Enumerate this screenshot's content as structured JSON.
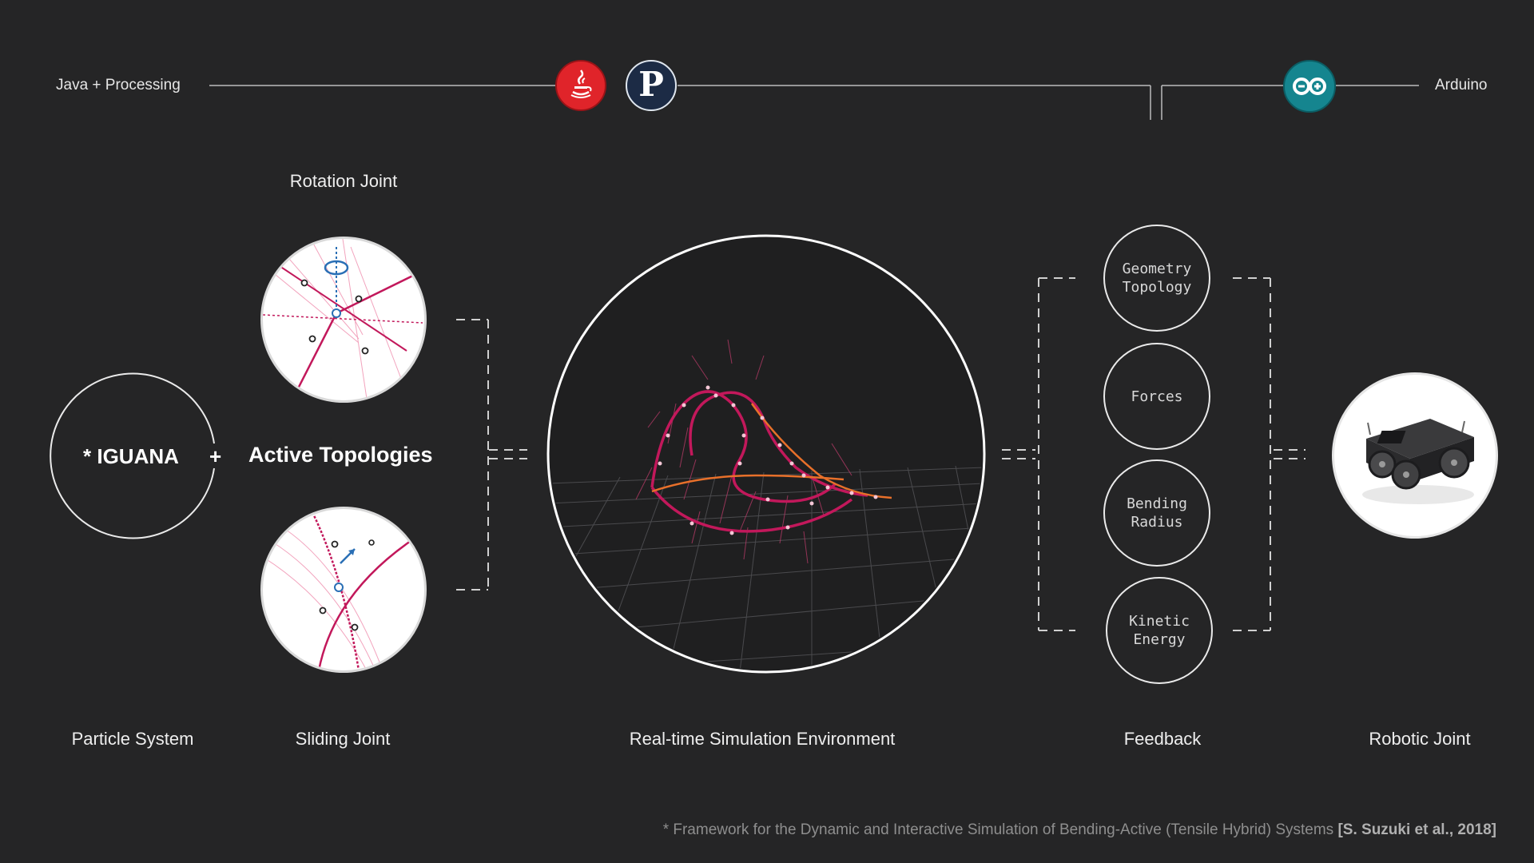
{
  "header": {
    "left_label": "Java + Processing",
    "right_label": "Arduino",
    "java_logo": "java-logo",
    "processing_logo_letter": "P",
    "arduino_logo": "arduino-logo"
  },
  "iguana": {
    "title": "* IGUANA",
    "plus": "+",
    "active_topologies": "Active Topologies"
  },
  "joints": {
    "rotation_label": "Rotation Joint",
    "sliding_label": "Sliding Joint"
  },
  "feedback": {
    "items": [
      {
        "line1": "Geometry",
        "line2": "Topology"
      },
      {
        "line1": "Forces",
        "line2": ""
      },
      {
        "line1": "Bending",
        "line2": "Radius"
      },
      {
        "line1": "Kinetic",
        "line2": "Energy"
      }
    ]
  },
  "bottom_labels": {
    "particle": "Particle System",
    "sliding": "Sliding Joint",
    "simulation": "Real-time Simulation Environment",
    "feedback": "Feedback",
    "robotic": "Robotic Joint"
  },
  "footnote": {
    "text": "* Framework for the Dynamic and Interactive Simulation of Bending-Active (Tensile Hybrid) Systems ",
    "citation": "[S. Suzuki et al., 2018]"
  },
  "colors": {
    "magenta": "#c2185b",
    "orange": "#e8702a",
    "java_red": "#e0242a",
    "processing_navy": "#1c2b45",
    "arduino_teal": "#15858f"
  }
}
